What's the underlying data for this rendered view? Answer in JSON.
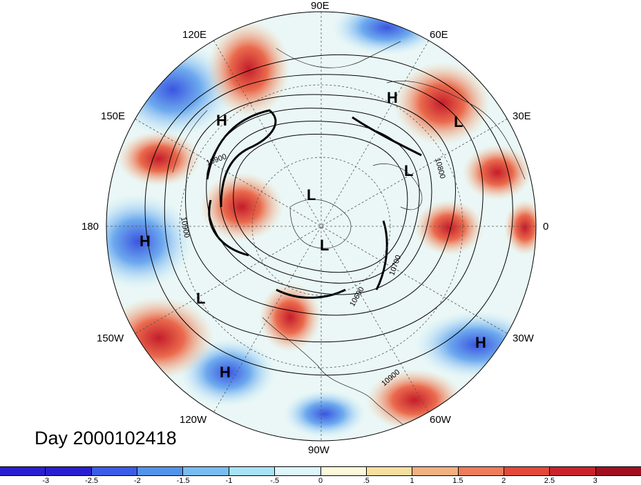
{
  "title": "Day 2000102418",
  "longitude_labels": {
    "e90": "90E",
    "e60": "60E",
    "e30": "30E",
    "zero": "0",
    "w30": "30W",
    "w60": "60W",
    "w90": "90W",
    "w120": "120W",
    "w150": "150W",
    "lon180": "180",
    "e150": "150E",
    "e120": "120E"
  },
  "pressure_centers": [
    "H",
    "H",
    "L",
    "L",
    "L",
    "L",
    "H",
    "L",
    "H",
    "H"
  ],
  "contour_labels": [
    "10900",
    "10800",
    "10900",
    "10700",
    "10600",
    "10900"
  ],
  "colorbar": {
    "ticks": [
      "-3",
      "-2.5",
      "-2",
      "-1.5",
      "-1",
      "-.5",
      "0",
      ".5",
      "1",
      "1.5",
      "2",
      "2.5",
      "3"
    ],
    "colors": [
      "#2a1fd0",
      "#3b5ce6",
      "#5294ea",
      "#78bdf2",
      "#a7e3f8",
      "#dcf6fb",
      "#fcf8d9",
      "#f8dfa0",
      "#f3b080",
      "#ee7d5c",
      "#e24a3b",
      "#c9242c",
      "#a01020"
    ]
  }
}
